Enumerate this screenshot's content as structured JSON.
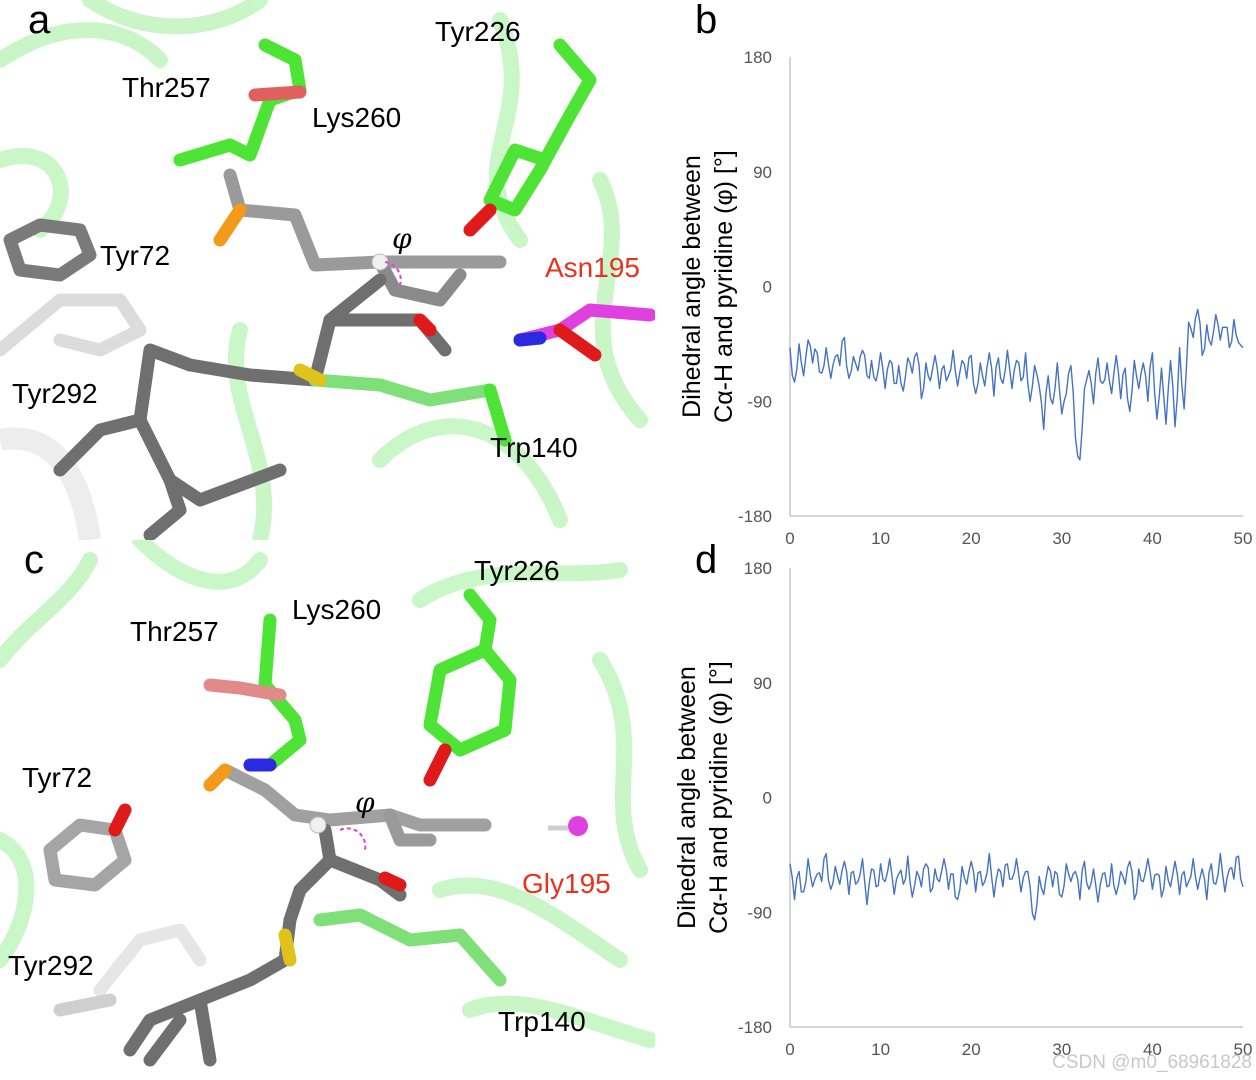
{
  "panels": {
    "a": {
      "letter": "a",
      "residues": {
        "tyr226": "Tyr226",
        "thr257": "Thr257",
        "lys260": "Lys260",
        "tyr72": "Tyr72",
        "asn195": "Asn195",
        "tyr292": "Tyr292",
        "trp140": "Trp140",
        "phi": "φ"
      }
    },
    "c": {
      "letter": "c",
      "residues": {
        "tyr226": "Tyr226",
        "thr257": "Thr257",
        "lys260": "Lys260",
        "tyr72": "Tyr72",
        "gly195": "Gly195",
        "tyr292": "Tyr292",
        "trp140": "Trp140",
        "phi": "φ"
      }
    },
    "b": {
      "letter": "b"
    },
    "d": {
      "letter": "d"
    }
  },
  "colors": {
    "carbon_green": "#4ee436",
    "carbon_gray": "#6f6f6f",
    "carbon_white": "#e6e6e6",
    "oxygen": "#e01a1a",
    "nitrogen": "#2a2ae0",
    "phosphorus": "#f39a1a",
    "sulfur": "#e0c21a",
    "magenta": "#e040e0",
    "cartoon": "#8fe88a",
    "series_line": "#4472c4"
  },
  "chart_data": [
    {
      "type": "line",
      "panel": "b",
      "ylabel": "Dihedral angle between Cα-H and pyridine (φ) [°]",
      "xlim": [
        0,
        50
      ],
      "ylim": [
        -180,
        180
      ],
      "xticks": [
        0,
        10,
        20,
        30,
        40,
        50
      ],
      "yticks": [
        180,
        90,
        0,
        -90,
        -180
      ],
      "series": [
        {
          "x": [
            0,
            0.5,
            1,
            1.5,
            2,
            2.5,
            3,
            3.5,
            4,
            4.5,
            5,
            5.5,
            6,
            6.5,
            7,
            7.5,
            8,
            8.5,
            9,
            9.5,
            10,
            10.5,
            11,
            11.5,
            12,
            12.5,
            13,
            13.5,
            14,
            14.5,
            15,
            15.5,
            16,
            16.5,
            17,
            17.5,
            18,
            18.5,
            19,
            19.5,
            20,
            20.5,
            21,
            21.5,
            22,
            22.5,
            23,
            23.5,
            24,
            24.5,
            25,
            25.5,
            26,
            26.5,
            27,
            27.5,
            28,
            28.5,
            29,
            29.5,
            30,
            30.5,
            31,
            31.5,
            32,
            32.5,
            33,
            33.5,
            34,
            34.5,
            35,
            35.5,
            36,
            36.5,
            37,
            37.5,
            38,
            38.5,
            39,
            39.5,
            40,
            40.5,
            41,
            41.5,
            42,
            42.5,
            43,
            43.5,
            44,
            44.5,
            45,
            45.5,
            46,
            46.5,
            47,
            47.5,
            48,
            48.5,
            49,
            49.5,
            50
          ],
          "values": [
            -48,
            -75,
            -45,
            -70,
            -42,
            -60,
            -52,
            -68,
            -48,
            -72,
            -55,
            -62,
            -40,
            -72,
            -55,
            -66,
            -50,
            -70,
            -58,
            -74,
            -52,
            -80,
            -58,
            -76,
            -62,
            -82,
            -56,
            -68,
            -52,
            -88,
            -60,
            -74,
            -54,
            -80,
            -62,
            -70,
            -50,
            -78,
            -58,
            -72,
            -54,
            -84,
            -60,
            -78,
            -52,
            -86,
            -56,
            -76,
            -50,
            -80,
            -58,
            -74,
            -52,
            -90,
            -62,
            -78,
            -112,
            -70,
            -92,
            -60,
            -100,
            -84,
            -62,
            -118,
            -136,
            -80,
            -66,
            -92,
            -56,
            -76,
            -60,
            -84,
            -54,
            -88,
            -64,
            -98,
            -58,
            -80,
            -60,
            -90,
            -52,
            -104,
            -64,
            -108,
            -58,
            -110,
            -48,
            -96,
            -28,
            -40,
            -18,
            -54,
            -30,
            -46,
            -22,
            -42,
            -32,
            -48,
            -26,
            -44,
            -48
          ]
        }
      ]
    },
    {
      "type": "line",
      "panel": "d",
      "ylabel": "Dihedral angle between Cα-H and pyridine (φ) [°]",
      "xlim": [
        0,
        50
      ],
      "ylim": [
        -180,
        180
      ],
      "xticks": [
        0,
        10,
        20,
        30,
        40,
        50
      ],
      "yticks": [
        180,
        90,
        0,
        -90,
        -180
      ],
      "series": [
        {
          "x": [
            0,
            0.5,
            1,
            1.5,
            2,
            2.5,
            3,
            3.5,
            4,
            4.5,
            5,
            5.5,
            6,
            6.5,
            7,
            7.5,
            8,
            8.5,
            9,
            9.5,
            10,
            10.5,
            11,
            11.5,
            12,
            12.5,
            13,
            13.5,
            14,
            14.5,
            15,
            15.5,
            16,
            16.5,
            17,
            17.5,
            18,
            18.5,
            19,
            19.5,
            20,
            20.5,
            21,
            21.5,
            22,
            22.5,
            23,
            23.5,
            24,
            24.5,
            25,
            25.5,
            26,
            26.5,
            27,
            27.5,
            28,
            28.5,
            29,
            29.5,
            30,
            30.5,
            31,
            31.5,
            32,
            32.5,
            33,
            33.5,
            34,
            34.5,
            35,
            35.5,
            36,
            36.5,
            37,
            37.5,
            38,
            38.5,
            39,
            39.5,
            40,
            40.5,
            41,
            41.5,
            42,
            42.5,
            43,
            43.5,
            44,
            44.5,
            45,
            45.5,
            46,
            46.5,
            47,
            47.5,
            48,
            48.5,
            49,
            49.5,
            50
          ],
          "values": [
            -52,
            -80,
            -58,
            -74,
            -48,
            -70,
            -60,
            -66,
            -44,
            -72,
            -54,
            -68,
            -50,
            -76,
            -58,
            -66,
            -48,
            -84,
            -56,
            -70,
            -52,
            -66,
            -48,
            -76,
            -60,
            -68,
            -46,
            -78,
            -58,
            -70,
            -52,
            -74,
            -56,
            -66,
            -48,
            -72,
            -60,
            -80,
            -54,
            -68,
            -50,
            -74,
            -58,
            -66,
            -44,
            -78,
            -56,
            -70,
            -52,
            -64,
            -48,
            -74,
            -58,
            -70,
            -96,
            -62,
            -76,
            -54,
            -70,
            -60,
            -78,
            -52,
            -66,
            -58,
            -80,
            -50,
            -72,
            -56,
            -82,
            -60,
            -70,
            -52,
            -76,
            -58,
            -68,
            -50,
            -80,
            -56,
            -66,
            -48,
            -72,
            -60,
            -78,
            -54,
            -70,
            -50,
            -76,
            -58,
            -66,
            -48,
            -72,
            -56,
            -80,
            -52,
            -68,
            -44,
            -74,
            -56,
            -64,
            -46,
            -70
          ]
        }
      ]
    }
  ],
  "watermark": "CSDN @m0_68961828"
}
